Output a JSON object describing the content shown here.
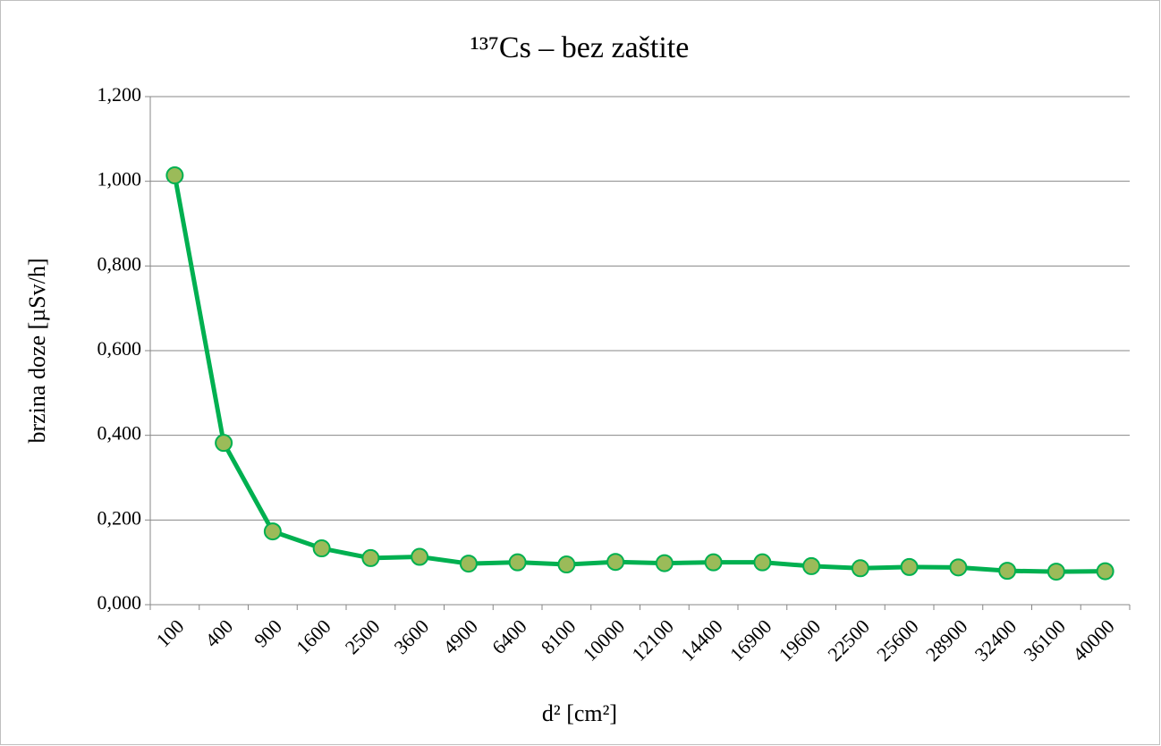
{
  "chart_data": {
    "type": "line",
    "title": "¹³⁷Cs – bez zaštite",
    "x_label": "d² [cm²]",
    "y_label": "brzina doze [µSv/h]",
    "categories": [
      "100",
      "400",
      "900",
      "1600",
      "2500",
      "3600",
      "4900",
      "6400",
      "8100",
      "10000",
      "12100",
      "14400",
      "16900",
      "19600",
      "22500",
      "25600",
      "28900",
      "32400",
      "36100",
      "40000"
    ],
    "values": [
      1.014,
      0.382,
      0.173,
      0.133,
      0.11,
      0.113,
      0.097,
      0.1,
      0.095,
      0.101,
      0.098,
      0.1,
      0.1,
      0.091,
      0.086,
      0.089,
      0.088,
      0.08,
      0.078,
      0.079
    ],
    "color": "#00b050",
    "marker_color": "#9bbb59",
    "ylim": [
      0,
      1.2
    ],
    "yticks": [
      {
        "value": 0,
        "label": "0,000"
      },
      {
        "value": 0.2,
        "label": "0,200"
      },
      {
        "value": 0.4,
        "label": "0,400"
      },
      {
        "value": 0.6,
        "label": "0,600"
      },
      {
        "value": 0.8,
        "label": "0,800"
      },
      {
        "value": 1.0,
        "label": "1,000"
      },
      {
        "value": 1.2,
        "label": "1,200"
      }
    ],
    "grid": true
  }
}
